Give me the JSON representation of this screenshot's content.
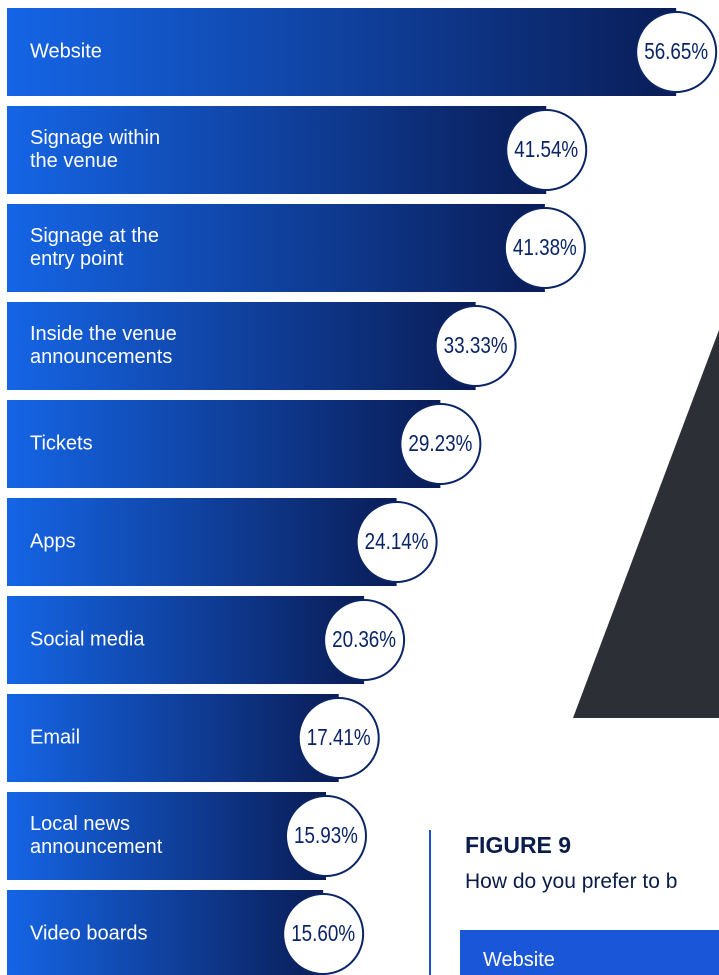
{
  "chart_data": {
    "type": "bar",
    "orientation": "horizontal",
    "categories": [
      "Website",
      "Signage within the venue",
      "Signage at the entry point",
      "Inside the venue announcements",
      "Tickets",
      "Apps",
      "Social media",
      "Email",
      "Local news announcement",
      "Video boards"
    ],
    "values": [
      56.65,
      41.54,
      41.38,
      33.33,
      29.23,
      24.14,
      20.36,
      17.41,
      15.93,
      15.6
    ],
    "value_labels": [
      "56.65%",
      "41.54%",
      "41.38%",
      "33.33%",
      "29.23%",
      "24.14%",
      "20.36%",
      "17.41%",
      "15.93%",
      "15.60%"
    ],
    "color": "#0b3fb8"
  },
  "figure": {
    "label": "FIGURE 9",
    "question": "How do you prefer to b",
    "first_item": "Website"
  }
}
